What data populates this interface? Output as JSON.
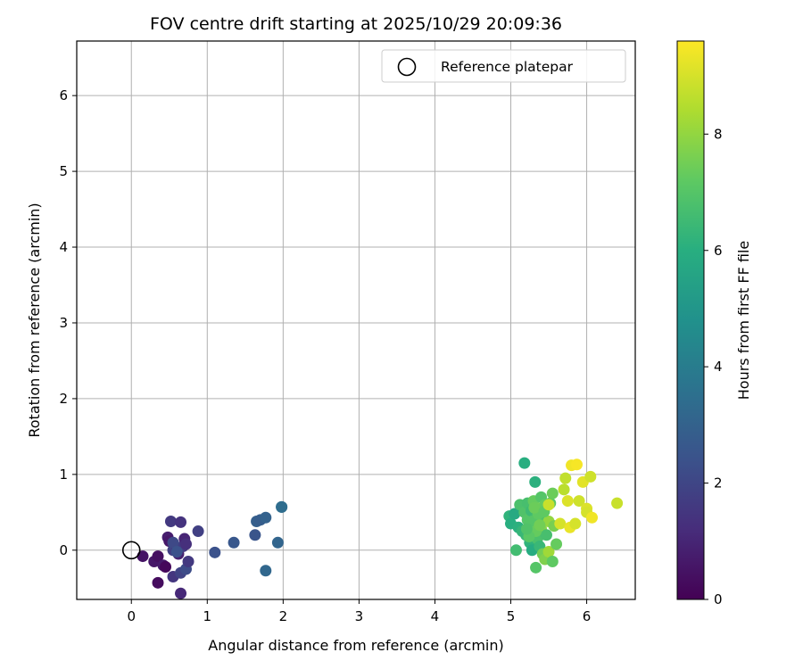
{
  "chart_data": {
    "type": "scatter",
    "title": "FOV centre drift starting at 2025/10/29 20:09:36",
    "xlabel": "Angular distance from reference (arcmin)",
    "ylabel": "Rotation from reference (arcmin)",
    "xlim": [
      -0.72,
      6.64
    ],
    "ylim": [
      -0.65,
      6.72
    ],
    "xticks": [
      0,
      1,
      2,
      3,
      4,
      5,
      6
    ],
    "yticks": [
      0,
      1,
      2,
      3,
      4,
      5,
      6
    ],
    "grid": true,
    "legend": {
      "placement": "upper-right",
      "entries": [
        "Reference platepar"
      ]
    },
    "colorbar": {
      "label": "Hours from first FF file",
      "range": [
        0,
        9.6
      ],
      "ticks": [
        0,
        2,
        4,
        6,
        8
      ],
      "colormap": "viridis"
    },
    "reference_point": {
      "x": 0,
      "y": 0
    },
    "points": [
      {
        "x": 0.15,
        "y": -0.08,
        "h": 0.5
      },
      {
        "x": 0.3,
        "y": -0.15,
        "h": 0.6
      },
      {
        "x": 0.35,
        "y": -0.08,
        "h": 0.4
      },
      {
        "x": 0.35,
        "y": -0.43,
        "h": 0.3
      },
      {
        "x": 0.42,
        "y": -0.2,
        "h": 0.7
      },
      {
        "x": 0.45,
        "y": -0.22,
        "h": 0.2
      },
      {
        "x": 0.48,
        "y": 0.17,
        "h": 0.8
      },
      {
        "x": 0.5,
        "y": 0.12,
        "h": 0.6
      },
      {
        "x": 0.52,
        "y": 0.38,
        "h": 1.6
      },
      {
        "x": 0.55,
        "y": -0.35,
        "h": 1.5
      },
      {
        "x": 0.55,
        "y": 0.0,
        "h": 1.8
      },
      {
        "x": 0.58,
        "y": 0.05,
        "h": 2.0
      },
      {
        "x": 0.6,
        "y": 0.0,
        "h": 1.2
      },
      {
        "x": 0.62,
        "y": -0.05,
        "h": 0.9
      },
      {
        "x": 0.65,
        "y": 0.37,
        "h": 1.4
      },
      {
        "x": 0.65,
        "y": -0.3,
        "h": 1.9
      },
      {
        "x": 0.65,
        "y": -0.57,
        "h": 1.1
      },
      {
        "x": 0.68,
        "y": 0.05,
        "h": 1.7
      },
      {
        "x": 0.7,
        "y": 0.15,
        "h": 1.0
      },
      {
        "x": 0.72,
        "y": 0.08,
        "h": 1.3
      },
      {
        "x": 0.72,
        "y": -0.25,
        "h": 2.2
      },
      {
        "x": 0.75,
        "y": -0.15,
        "h": 1.6
      },
      {
        "x": 0.55,
        "y": 0.1,
        "h": 2.1
      },
      {
        "x": 0.6,
        "y": -0.02,
        "h": 2.4
      },
      {
        "x": 0.88,
        "y": 0.25,
        "h": 1.8
      },
      {
        "x": 1.1,
        "y": -0.03,
        "h": 2.4
      },
      {
        "x": 1.35,
        "y": 0.1,
        "h": 2.6
      },
      {
        "x": 1.63,
        "y": 0.2,
        "h": 2.5
      },
      {
        "x": 1.65,
        "y": 0.38,
        "h": 2.9
      },
      {
        "x": 1.7,
        "y": 0.4,
        "h": 2.8
      },
      {
        "x": 1.77,
        "y": 0.43,
        "h": 3.0
      },
      {
        "x": 1.77,
        "y": -0.27,
        "h": 3.2
      },
      {
        "x": 1.93,
        "y": 0.1,
        "h": 3.1
      },
      {
        "x": 1.98,
        "y": 0.57,
        "h": 3.6
      },
      {
        "x": 1.98,
        "y": 0.57,
        "h": 3.4
      },
      {
        "x": 4.98,
        "y": 0.45,
        "h": 6.2
      },
      {
        "x": 5.0,
        "y": 0.35,
        "h": 6.0
      },
      {
        "x": 5.05,
        "y": 0.48,
        "h": 5.8
      },
      {
        "x": 5.07,
        "y": 0.0,
        "h": 6.6
      },
      {
        "x": 5.1,
        "y": 0.3,
        "h": 6.1
      },
      {
        "x": 5.12,
        "y": 0.6,
        "h": 6.8
      },
      {
        "x": 5.15,
        "y": 0.25,
        "h": 6.3
      },
      {
        "x": 5.18,
        "y": 1.15,
        "h": 6.0
      },
      {
        "x": 5.18,
        "y": 0.5,
        "h": 6.9
      },
      {
        "x": 5.2,
        "y": 0.2,
        "h": 6.4
      },
      {
        "x": 5.22,
        "y": 0.4,
        "h": 7.0
      },
      {
        "x": 5.22,
        "y": 0.62,
        "h": 6.7
      },
      {
        "x": 5.25,
        "y": 0.1,
        "h": 6.2
      },
      {
        "x": 5.25,
        "y": 0.3,
        "h": 7.2
      },
      {
        "x": 5.27,
        "y": 0.52,
        "h": 6.5
      },
      {
        "x": 5.28,
        "y": 0.0,
        "h": 5.9
      },
      {
        "x": 5.3,
        "y": 0.65,
        "h": 7.3
      },
      {
        "x": 5.3,
        "y": 0.2,
        "h": 7.1
      },
      {
        "x": 5.32,
        "y": 0.9,
        "h": 6.1
      },
      {
        "x": 5.32,
        "y": 0.42,
        "h": 6.6
      },
      {
        "x": 5.33,
        "y": -0.23,
        "h": 7.0
      },
      {
        "x": 5.35,
        "y": 0.35,
        "h": 7.4
      },
      {
        "x": 5.35,
        "y": 0.15,
        "h": 6.8
      },
      {
        "x": 5.37,
        "y": 0.55,
        "h": 7.6
      },
      {
        "x": 5.38,
        "y": 0.05,
        "h": 6.4
      },
      {
        "x": 5.4,
        "y": 0.7,
        "h": 7.0
      },
      {
        "x": 5.4,
        "y": 0.28,
        "h": 7.8
      },
      {
        "x": 5.42,
        "y": -0.05,
        "h": 7.5
      },
      {
        "x": 5.42,
        "y": 0.45,
        "h": 6.9
      },
      {
        "x": 5.45,
        "y": -0.12,
        "h": 7.7
      },
      {
        "x": 5.45,
        "y": 0.6,
        "h": 7.3
      },
      {
        "x": 5.47,
        "y": 0.2,
        "h": 6.7
      },
      {
        "x": 5.5,
        "y": 0.38,
        "h": 8.0
      },
      {
        "x": 5.5,
        "y": -0.02,
        "h": 8.2
      },
      {
        "x": 5.52,
        "y": 0.62,
        "h": 7.1
      },
      {
        "x": 5.55,
        "y": -0.15,
        "h": 7.2
      },
      {
        "x": 5.55,
        "y": 0.75,
        "h": 7.4
      },
      {
        "x": 5.57,
        "y": 0.32,
        "h": 7.6
      },
      {
        "x": 5.6,
        "y": 0.08,
        "h": 7.3
      },
      {
        "x": 5.28,
        "y": 0.38,
        "h": 7.0
      },
      {
        "x": 5.33,
        "y": 0.25,
        "h": 7.3
      },
      {
        "x": 5.36,
        "y": 0.48,
        "h": 7.2
      },
      {
        "x": 5.24,
        "y": 0.18,
        "h": 7.1
      },
      {
        "x": 5.31,
        "y": 0.56,
        "h": 7.4
      },
      {
        "x": 5.38,
        "y": 0.33,
        "h": 7.5
      },
      {
        "x": 5.21,
        "y": 0.28,
        "h": 6.9
      },
      {
        "x": 5.44,
        "y": 0.51,
        "h": 7.2
      },
      {
        "x": 5.5,
        "y": 0.6,
        "h": 8.8
      },
      {
        "x": 5.65,
        "y": 0.35,
        "h": 9.0
      },
      {
        "x": 5.7,
        "y": 0.8,
        "h": 8.6
      },
      {
        "x": 5.72,
        "y": 0.95,
        "h": 8.7
      },
      {
        "x": 5.75,
        "y": 0.65,
        "h": 9.1
      },
      {
        "x": 5.78,
        "y": 0.3,
        "h": 9.3
      },
      {
        "x": 5.8,
        "y": 1.12,
        "h": 9.4
      },
      {
        "x": 5.85,
        "y": 0.35,
        "h": 9.0
      },
      {
        "x": 5.87,
        "y": 1.13,
        "h": 9.5
      },
      {
        "x": 5.9,
        "y": 0.65,
        "h": 8.9
      },
      {
        "x": 5.95,
        "y": 0.9,
        "h": 9.2
      },
      {
        "x": 6.0,
        "y": 0.55,
        "h": 9.1
      },
      {
        "x": 6.0,
        "y": 0.5,
        "h": 9.0
      },
      {
        "x": 6.05,
        "y": 0.97,
        "h": 8.9
      },
      {
        "x": 6.07,
        "y": 0.43,
        "h": 9.4
      },
      {
        "x": 6.4,
        "y": 0.62,
        "h": 8.8
      }
    ]
  }
}
